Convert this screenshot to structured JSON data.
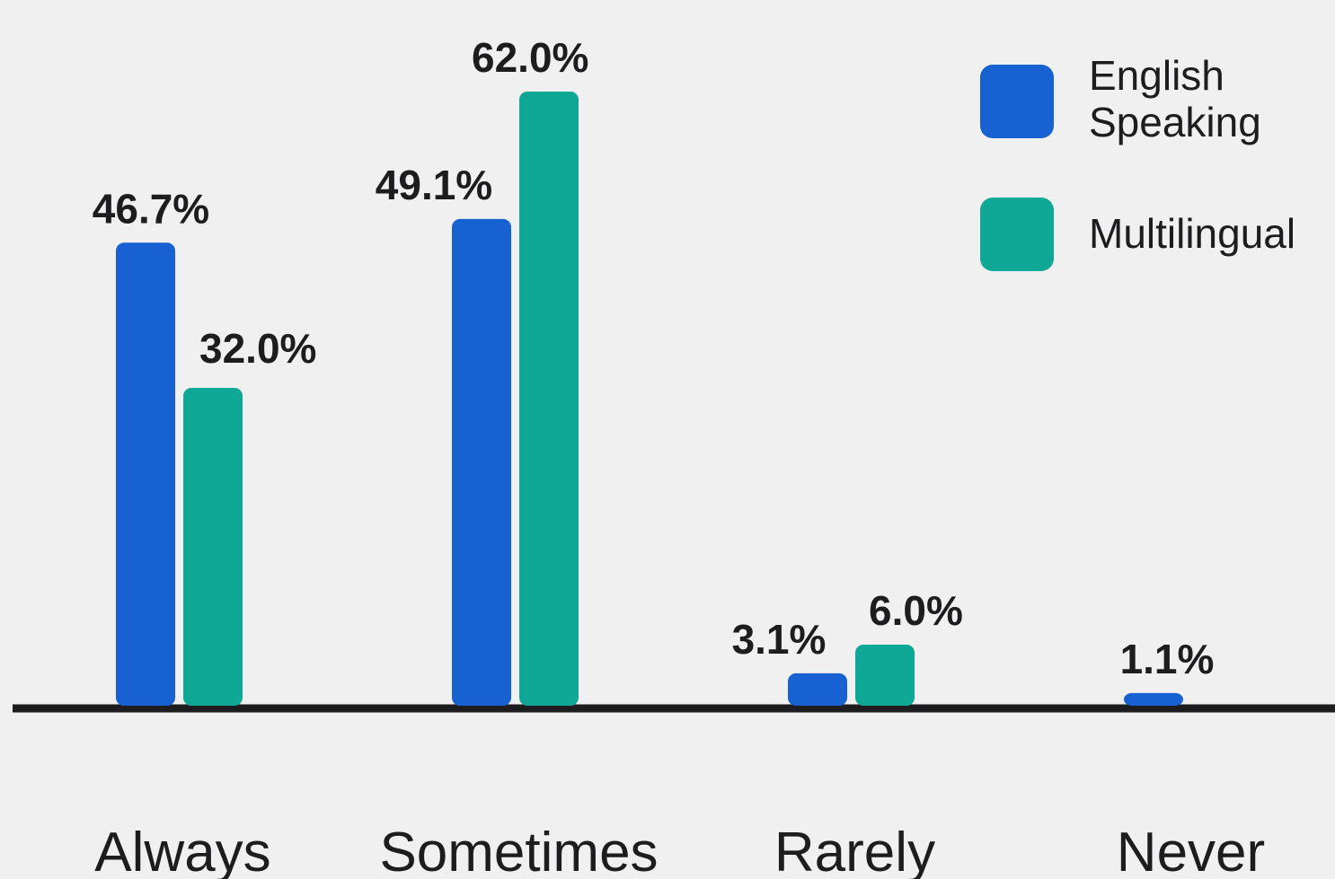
{
  "chart_data": {
    "type": "bar",
    "categories": [
      "Always",
      "Sometimes",
      "Rarely",
      "Never"
    ],
    "series": [
      {
        "name": "English Speaking",
        "name_lines": [
          "English",
          "Speaking"
        ],
        "color": "#1861d2",
        "values": [
          46.7,
          49.1,
          3.1,
          1.1
        ],
        "labels": [
          "46.7%",
          "49.1%",
          "3.1%",
          "1.1%"
        ]
      },
      {
        "name": "Multilingual",
        "name_lines": [
          "Multilingual"
        ],
        "color": "#0fa795",
        "values": [
          32.0,
          62.0,
          6.0,
          null
        ],
        "labels": [
          "32.0%",
          "62.0%",
          "6.0%",
          null
        ]
      }
    ],
    "title": "",
    "xlabel": "",
    "ylabel": "",
    "ylim": [
      0,
      62
    ],
    "grid": false,
    "legend": "top-right",
    "value_format": "percent"
  }
}
